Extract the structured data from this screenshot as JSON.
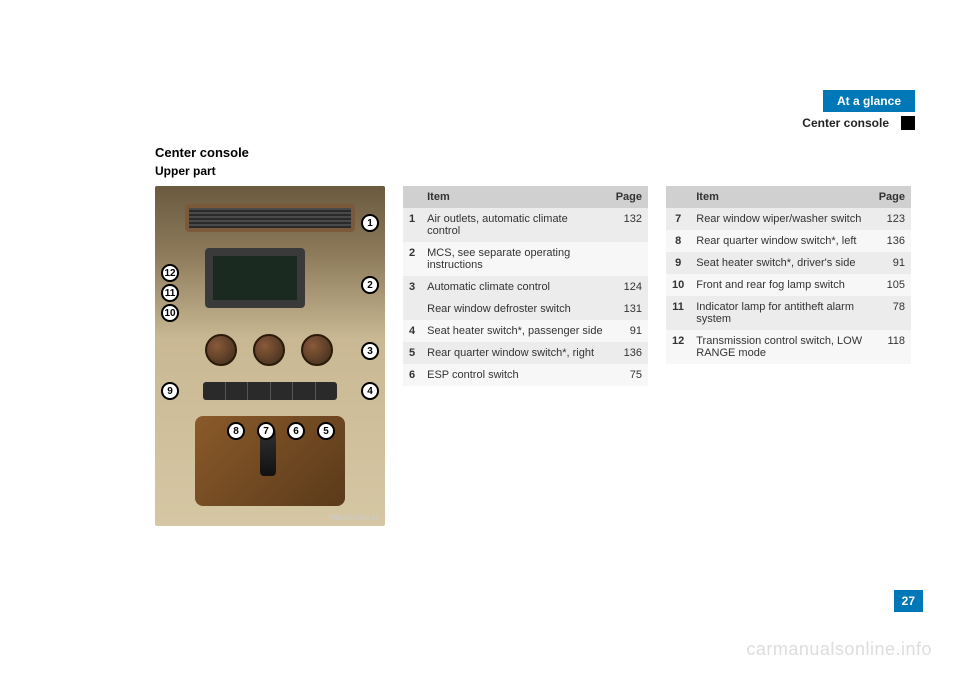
{
  "header": {
    "tab": "At a glance",
    "subtitle": "Center console"
  },
  "section": {
    "title": "Center console",
    "subtitle": "Upper part"
  },
  "image": {
    "ref": "P68.20-2633-31",
    "callouts": [
      "1",
      "2",
      "3",
      "4",
      "5",
      "6",
      "7",
      "8",
      "9",
      "10",
      "11",
      "12"
    ]
  },
  "table1": {
    "headers": {
      "item": "Item",
      "page": "Page"
    },
    "rows": [
      {
        "n": "1",
        "item": "Air outlets, automatic climate control",
        "page": "132",
        "shade": true
      },
      {
        "n": "2",
        "item": "MCS, see separate operating instructions",
        "page": "",
        "shade": false
      },
      {
        "n": "3",
        "item": "Automatic climate control",
        "page": "124",
        "shade": true
      },
      {
        "n": "",
        "item": "Rear window defroster switch",
        "page": "131",
        "shade": true
      },
      {
        "n": "4",
        "item": "Seat heater switch*, passenger side",
        "page": "91",
        "shade": false
      },
      {
        "n": "5",
        "item": "Rear quarter window switch*, right",
        "page": "136",
        "shade": true
      },
      {
        "n": "6",
        "item": "ESP control switch",
        "page": "75",
        "shade": false
      }
    ]
  },
  "table2": {
    "headers": {
      "item": "Item",
      "page": "Page"
    },
    "rows": [
      {
        "n": "7",
        "item": "Rear window wiper/wash­er switch",
        "page": "123",
        "shade": true
      },
      {
        "n": "8",
        "item": "Rear quarter window switch*, left",
        "page": "136",
        "shade": false
      },
      {
        "n": "9",
        "item": "Seat heater switch*, driver's side",
        "page": "91",
        "shade": true
      },
      {
        "n": "10",
        "item": "Front and rear fog lamp switch",
        "page": "105",
        "shade": false
      },
      {
        "n": "11",
        "item": "Indicator lamp for antitheft alarm system",
        "page": "78",
        "shade": true
      },
      {
        "n": "12",
        "item": "Transmission control switch, LOW RANGE mode",
        "page": "118",
        "shade": false
      }
    ]
  },
  "pageNumber": "27",
  "watermark": "carmanualsonline.info"
}
